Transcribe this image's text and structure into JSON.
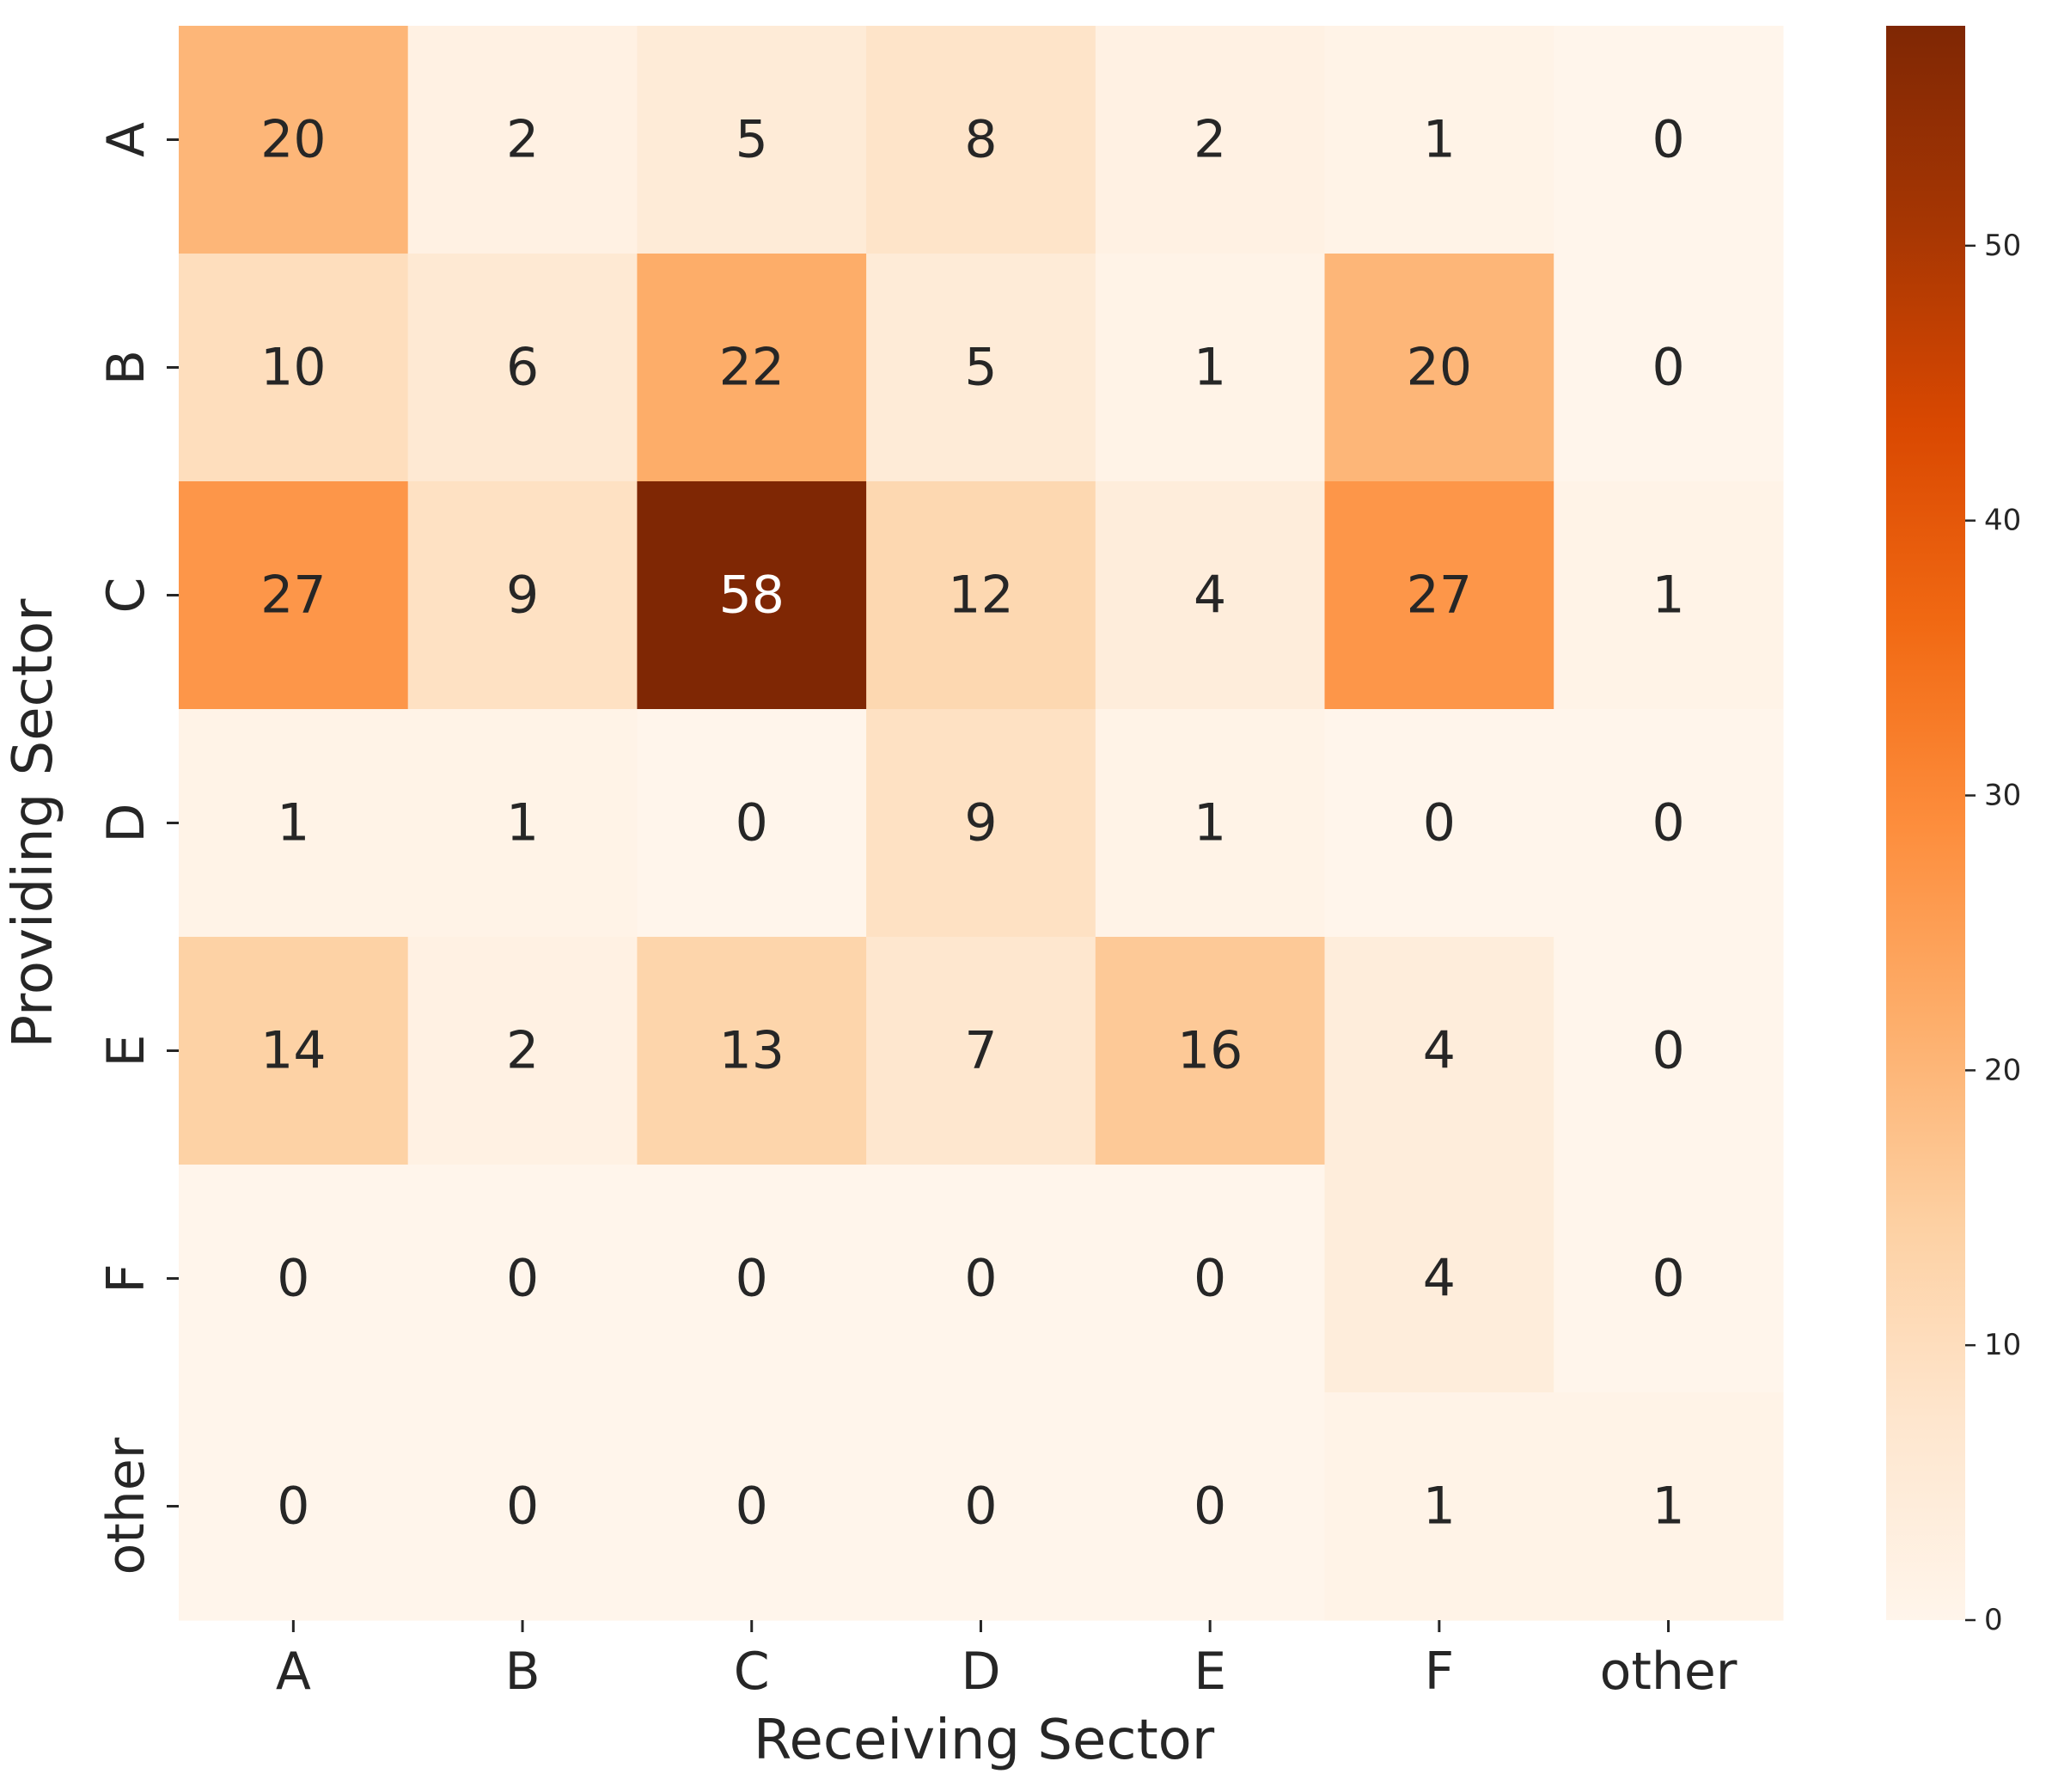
{
  "chart_data": {
    "type": "heatmap",
    "xlabel": "Receiving Sector",
    "ylabel": "Providing Sector",
    "x_categories": [
      "A",
      "B",
      "C",
      "D",
      "E",
      "F",
      "other"
    ],
    "y_categories": [
      "A",
      "B",
      "C",
      "D",
      "E",
      "F",
      "other"
    ],
    "values": [
      [
        20,
        2,
        5,
        8,
        2,
        1,
        0
      ],
      [
        10,
        6,
        22,
        5,
        1,
        20,
        0
      ],
      [
        27,
        9,
        58,
        12,
        4,
        27,
        1
      ],
      [
        1,
        1,
        0,
        9,
        1,
        0,
        0
      ],
      [
        14,
        2,
        13,
        7,
        16,
        4,
        0
      ],
      [
        0,
        0,
        0,
        0,
        0,
        4,
        0
      ],
      [
        0,
        0,
        0,
        0,
        0,
        1,
        1
      ]
    ],
    "colormap": "Oranges",
    "vmin": 0,
    "vmax": 58,
    "colorbar_ticks": [
      0,
      10,
      20,
      30,
      40,
      50
    ],
    "annotated": true
  }
}
